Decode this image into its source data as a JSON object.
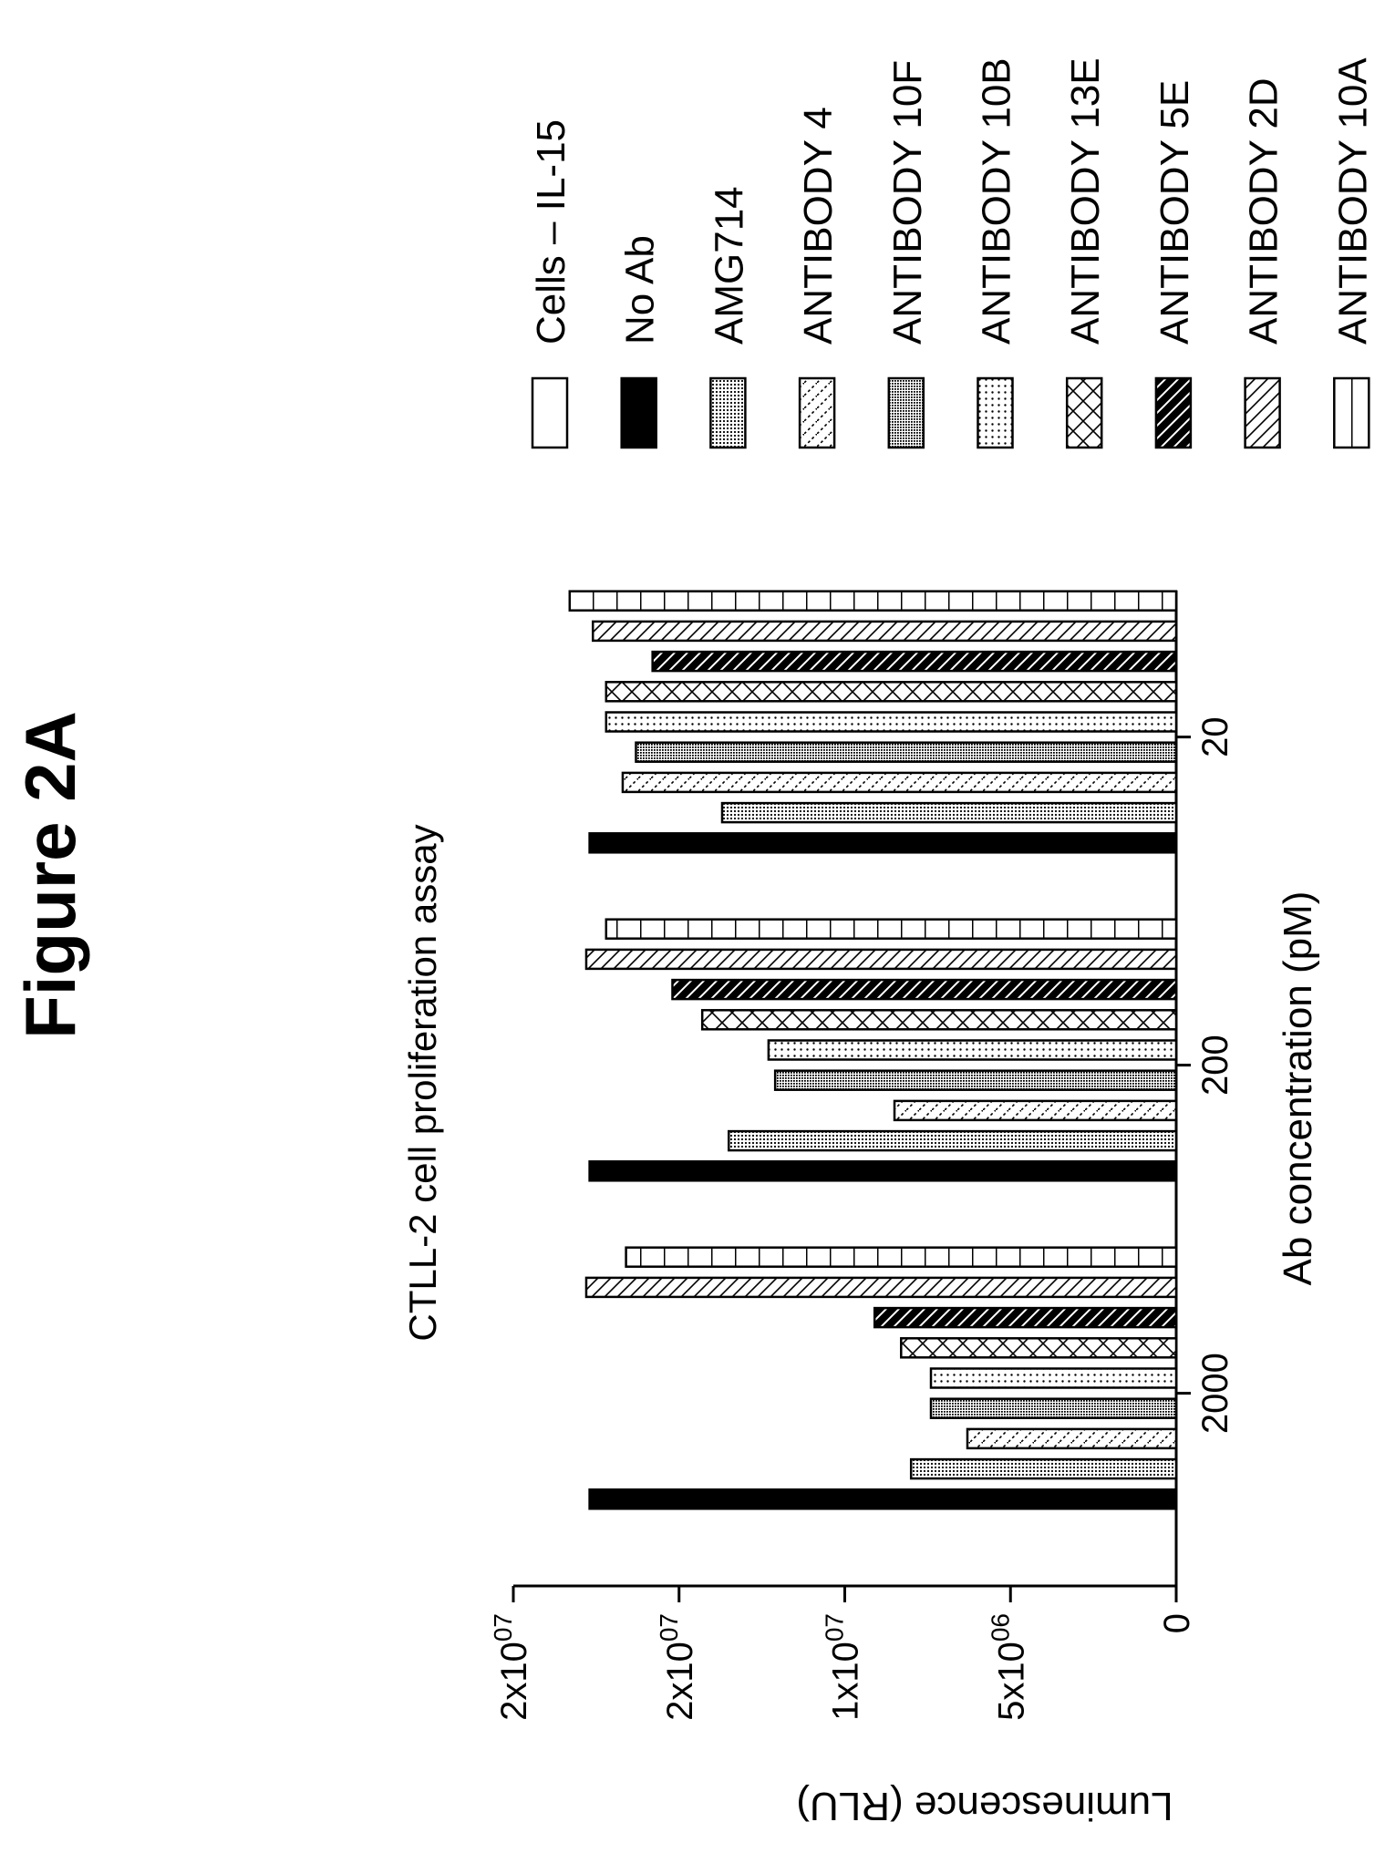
{
  "figure_title": "Figure 2A",
  "chart_data": {
    "type": "bar",
    "title": "CTLL-2 cell proliferation assay",
    "xlabel": "Ab concentration (pM)",
    "ylabel": "Luminescence (RLU)",
    "ylim": [
      0,
      20000000
    ],
    "yticks": [
      {
        "value": 0,
        "label": "0"
      },
      {
        "value": 5000000,
        "label": "5x10",
        "exp": "06"
      },
      {
        "value": 10000000,
        "label": "1x10",
        "exp": "07"
      },
      {
        "value": 15000000,
        "label": "2x10",
        "exp": "07"
      },
      {
        "value": 20000000,
        "label": "2x10",
        "exp": "07"
      }
    ],
    "categories": [
      "2000",
      "200",
      "20"
    ],
    "legend_position": "right",
    "series": [
      {
        "name": "Cells – IL-15",
        "pattern": "open",
        "values": [
          0,
          0,
          0
        ]
      },
      {
        "name": "No Ab",
        "pattern": "solid",
        "values": [
          17700000,
          17700000,
          17700000
        ]
      },
      {
        "name": "AMG714",
        "pattern": "fine-dots",
        "values": [
          8000000,
          13500000,
          13700000
        ]
      },
      {
        "name": "ANTIBODY 4",
        "pattern": "dash-diag",
        "values": [
          6300000,
          8500000,
          16700000
        ]
      },
      {
        "name": "ANTIBODY 10F",
        "pattern": "dense-dots",
        "values": [
          7400000,
          12100000,
          16300000
        ]
      },
      {
        "name": "ANTIBODY 10B",
        "pattern": "sparse-dots",
        "values": [
          7400000,
          12300000,
          17200000
        ]
      },
      {
        "name": "ANTIBODY 13E",
        "pattern": "crosshatch",
        "values": [
          8300000,
          14300000,
          17200000
        ]
      },
      {
        "name": "ANTIBODY 5E",
        "pattern": "solid-stripe",
        "values": [
          9100000,
          15200000,
          15800000
        ]
      },
      {
        "name": "ANTIBODY 2D",
        "pattern": "diag",
        "values": [
          17800000,
          17800000,
          17600000
        ]
      },
      {
        "name": "ANTIBODY 10A",
        "pattern": "vlines",
        "values": [
          16600000,
          17200000,
          18300000
        ]
      }
    ]
  }
}
